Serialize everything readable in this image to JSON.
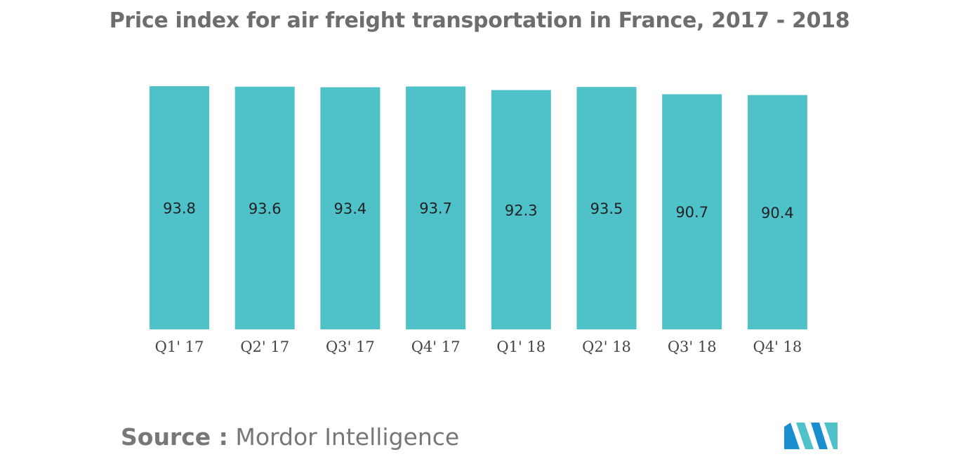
{
  "title": "Price index for air freight transportation in France, 2017 - 2018",
  "source": {
    "label": "Source :",
    "text": "Mordor Intelligence"
  },
  "logo": {
    "icon": "mordor-intelligence-logo-icon",
    "colors": [
      "#1a8fd0",
      "#4fc2c9"
    ]
  },
  "colors": {
    "bar": "#4fc2c9"
  },
  "chart_data": {
    "type": "bar",
    "title": "Price index for air freight transportation in France, 2017 - 2018",
    "categories": [
      "Q1' 17",
      "Q2' 17",
      "Q3' 17",
      "Q4' 17",
      "Q1' 18",
      "Q2' 18",
      "Q3' 18",
      "Q4' 18"
    ],
    "values": [
      93.8,
      93.6,
      93.4,
      93.7,
      92.3,
      93.5,
      90.7,
      90.4
    ],
    "value_labels": [
      "93.8",
      "93.6",
      "93.4",
      "93.7",
      "92.3",
      "93.5",
      "90.7",
      "90.4"
    ],
    "xlabel": "",
    "ylabel": "",
    "ylim": [
      0,
      93.8
    ],
    "grid": false,
    "legend": "none"
  }
}
